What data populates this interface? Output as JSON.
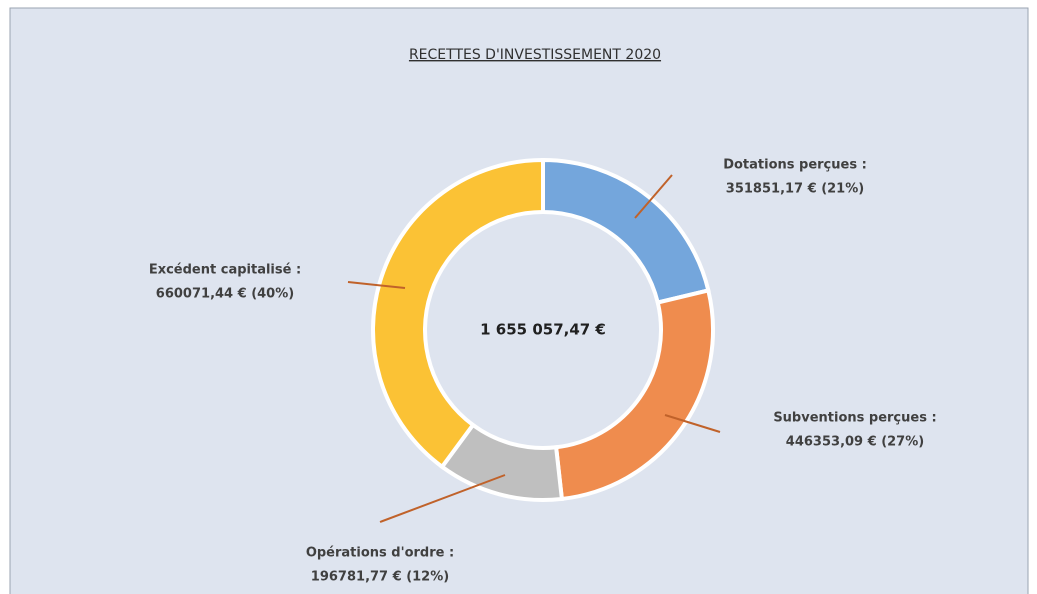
{
  "chart_data": {
    "type": "donut",
    "title": "RECETTES D'INVESTISSEMENT 2020",
    "center_label": "1 655 057,47 €",
    "categories": [
      "Dotations perçues :",
      "Subventions perçues :",
      "Opérations d'ordre :",
      "Excédent capitalisé :"
    ],
    "values": [
      351851.17,
      446353.09,
      196781.77,
      660071.44
    ],
    "value_labels": [
      "351851,17 € (21%)",
      "446353,09 € (27%)",
      "196781,77 € (12%)",
      "660071,44 € (40%)"
    ],
    "colors": [
      "#74a6dc",
      "#ef8c4e",
      "#bfbfbf",
      "#fbc235"
    ]
  }
}
